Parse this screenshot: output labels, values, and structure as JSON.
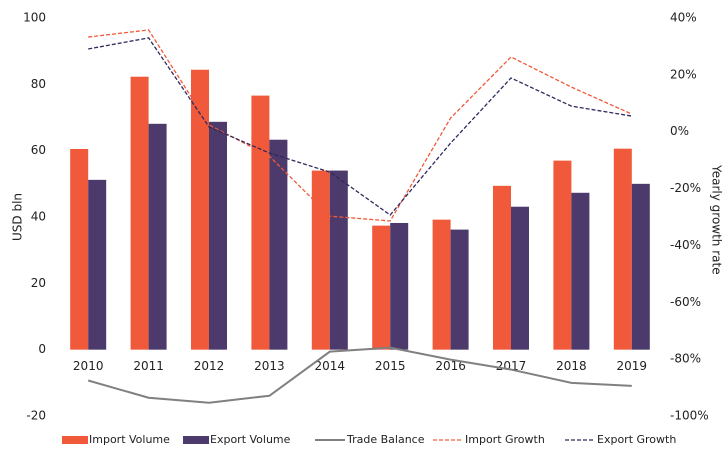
{
  "chart_data": {
    "type": "bar",
    "categories": [
      "2010",
      "2011",
      "2012",
      "2013",
      "2014",
      "2015",
      "2016",
      "2017",
      "2018",
      "2019"
    ],
    "ylabel": "USD bln",
    "y2label": "Yearly growth rate",
    "ylim": [
      -20,
      100
    ],
    "yticks": [
      -20,
      0,
      20,
      40,
      60,
      80,
      100
    ],
    "y2lim": [
      -100,
      40
    ],
    "y2ticks": [
      {
        "value": -100,
        "label": "-100%"
      },
      {
        "value": -80,
        "label": "-80%"
      },
      {
        "value": -60,
        "label": "-60%"
      },
      {
        "value": -40,
        "label": "-40%"
      },
      {
        "value": -20,
        "label": "-20%"
      },
      {
        "value": 0,
        "label": "0%"
      },
      {
        "value": 20,
        "label": "20%"
      },
      {
        "value": 40,
        "label": "40%"
      }
    ],
    "legend": "bottom",
    "series": [
      {
        "name": "Import Volume",
        "type": "bar",
        "color": "#f05a3a",
        "values": [
          60.5,
          82.3,
          84.4,
          76.6,
          54,
          37.4,
          39.2,
          49.4,
          57,
          60.6
        ]
      },
      {
        "name": "Export Volume",
        "type": "bar",
        "color": "#4b3a6b",
        "values": [
          51.2,
          68.1,
          68.7,
          63.3,
          54,
          38.2,
          36.2,
          43.1,
          47.3,
          50
        ]
      },
      {
        "name": "Trade Balance",
        "type": "line",
        "color": "#808080",
        "values": [
          -9.3,
          -14.5,
          -16,
          -13.9,
          -0.6,
          0.6,
          -3,
          -6,
          -10,
          -10.9
        ]
      },
      {
        "name": "Import Growth",
        "type": "line",
        "dashed": true,
        "axis": "y2",
        "color": "#f05a3a",
        "values": [
          33.3,
          35.8,
          2.4,
          -8.6,
          -29.7,
          -31.4,
          4.8,
          26.3,
          15.7,
          6.2
        ]
      },
      {
        "name": "Export Growth",
        "type": "line",
        "dashed": true,
        "axis": "y2",
        "color": "#2e2a5e",
        "values": [
          29.1,
          33,
          1.7,
          -7.5,
          -14.2,
          -29.3,
          -4,
          18.9,
          9,
          5.5
        ]
      }
    ]
  }
}
